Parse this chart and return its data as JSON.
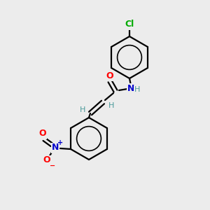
{
  "background_color": "#ececec",
  "bond_color": "#000000",
  "bond_width": 1.6,
  "atom_colors": {
    "O": "#ff0000",
    "N_amide": "#0000cc",
    "N_nitro": "#0000cc",
    "Cl": "#00aa00",
    "H": "#4a9a9a",
    "C": "#000000"
  },
  "font_size_atom": 9,
  "font_size_h": 8,
  "font_size_charge": 7
}
